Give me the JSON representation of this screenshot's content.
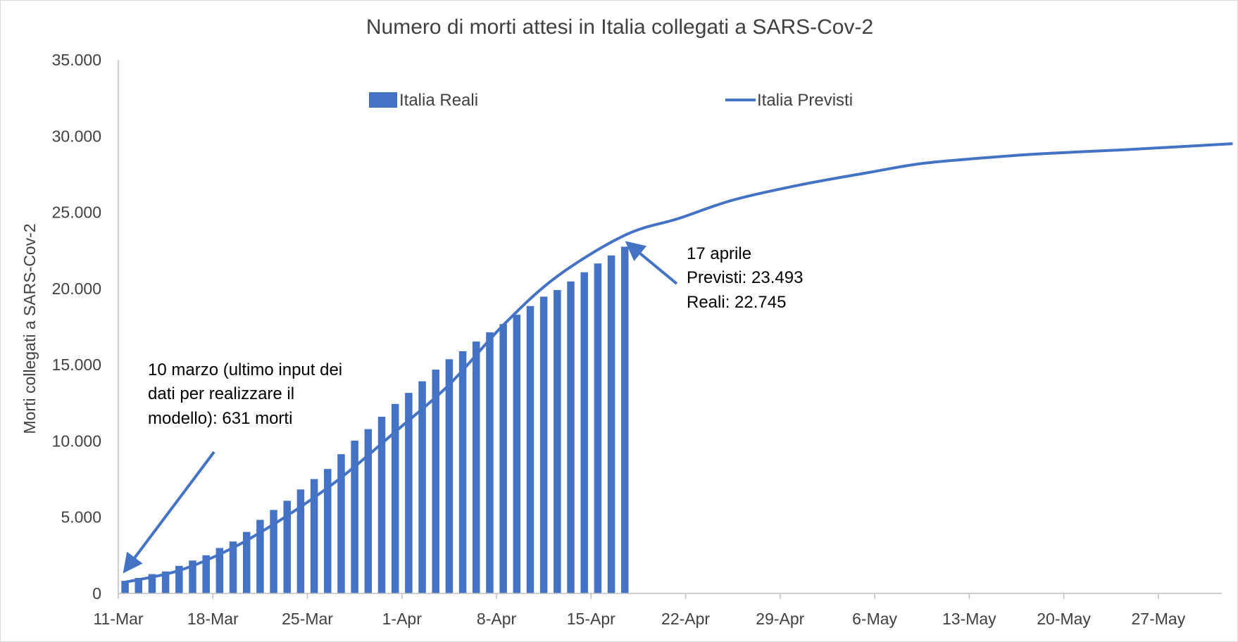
{
  "colors": {
    "series": "#4472C4",
    "axis": "#BFBFBF",
    "text": "#404040",
    "grid": "#D9D9D9"
  },
  "chart_data": {
    "type": "bar+line",
    "title": "Numero di morti attesi in Italia collegati a SARS-Cov-2",
    "xlabel": "",
    "ylabel": "Morti collegati a SARS-Cov-2",
    "ylim": [
      0,
      35000
    ],
    "y_ticks": [
      0,
      5000,
      10000,
      15000,
      20000,
      25000,
      30000,
      35000
    ],
    "y_tick_labels": [
      "0",
      "5.000",
      "10.000",
      "15.000",
      "20.000",
      "25.000",
      "30.000",
      "35.000"
    ],
    "x_tick_labels": [
      "11-Mar",
      "18-Mar",
      "25-Mar",
      "1-Apr",
      "8-Apr",
      "15-Apr",
      "22-Apr",
      "29-Apr",
      "6-May",
      "13-May",
      "20-May",
      "27-May"
    ],
    "x_ticks_dates": [
      "2020-03-11",
      "2020-03-18",
      "2020-03-25",
      "2020-04-01",
      "2020-04-08",
      "2020-04-15",
      "2020-04-22",
      "2020-04-29",
      "2020-05-06",
      "2020-05-13",
      "2020-05-20",
      "2020-05-27"
    ],
    "grid": false,
    "legend_position": "top",
    "series": [
      {
        "name": "Italia Reali",
        "kind": "bar",
        "x": [
          "2020-03-11",
          "2020-03-12",
          "2020-03-13",
          "2020-03-14",
          "2020-03-15",
          "2020-03-16",
          "2020-03-17",
          "2020-03-18",
          "2020-03-19",
          "2020-03-20",
          "2020-03-21",
          "2020-03-22",
          "2020-03-23",
          "2020-03-24",
          "2020-03-25",
          "2020-03-26",
          "2020-03-27",
          "2020-03-28",
          "2020-03-29",
          "2020-03-30",
          "2020-03-31",
          "2020-04-01",
          "2020-04-02",
          "2020-04-03",
          "2020-04-04",
          "2020-04-05",
          "2020-04-06",
          "2020-04-07",
          "2020-04-08",
          "2020-04-09",
          "2020-04-10",
          "2020-04-11",
          "2020-04-12",
          "2020-04-13",
          "2020-04-14",
          "2020-04-15",
          "2020-04-16",
          "2020-04-17"
        ],
        "values": [
          827,
          1016,
          1266,
          1441,
          1809,
          2158,
          2503,
          2978,
          3405,
          4032,
          4825,
          5476,
          6077,
          6820,
          7503,
          8165,
          9134,
          10023,
          10779,
          11591,
          12428,
          13155,
          13915,
          14681,
          15362,
          15887,
          16523,
          17127,
          17669,
          18279,
          18849,
          19468,
          19899,
          20465,
          21067,
          21645,
          22170,
          22745
        ]
      },
      {
        "name": "Italia Previsti",
        "kind": "line",
        "x": [
          "2020-03-11",
          "2020-03-15",
          "2020-03-19",
          "2020-03-23",
          "2020-03-27",
          "2020-03-31",
          "2020-04-04",
          "2020-04-08",
          "2020-04-12",
          "2020-04-17",
          "2020-04-21",
          "2020-04-25",
          "2020-04-30",
          "2020-05-05",
          "2020-05-09",
          "2020-05-14",
          "2020-05-18",
          "2020-05-24",
          "2020-05-29",
          "2020-06-01"
        ],
        "values": [
          740,
          1500,
          3000,
          5100,
          7600,
          10600,
          13700,
          17600,
          20800,
          23493,
          24600,
          25800,
          26800,
          27600,
          28200,
          28600,
          28850,
          29100,
          29350,
          29500
        ]
      }
    ],
    "annotations": [
      {
        "lines": [
          "10 marzo (ultimo input dei",
          "dati per realizzare il",
          "modello): 631 morti"
        ]
      },
      {
        "lines": [
          "17 aprile",
          "Previsti: 23.493",
          "Reali: 22.745"
        ]
      }
    ]
  }
}
